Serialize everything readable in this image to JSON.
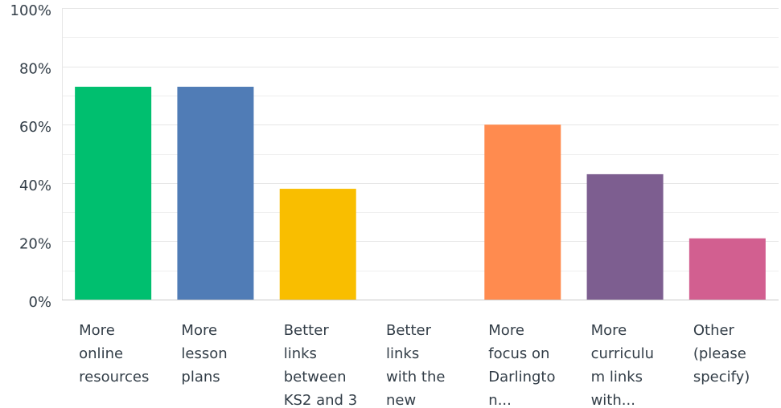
{
  "chart_data": {
    "type": "bar",
    "title": "",
    "xlabel": "",
    "ylabel": "",
    "ylim": [
      0,
      100
    ],
    "grid": true,
    "legend": "none",
    "y_ticks": [
      "0%",
      "20%",
      "40%",
      "60%",
      "80%",
      "100%"
    ],
    "categories": [
      "More online resources",
      "More lesson plans",
      "Better links between KS2 and 3",
      "Better links with the new",
      "More focus on Darlington...",
      "More curriculum links with...",
      "Other (please specify)"
    ],
    "category_label_lines": [
      [
        "More",
        "online",
        "resources"
      ],
      [
        "More",
        "lesson",
        "plans"
      ],
      [
        "Better",
        "links",
        "between",
        "KS2 and 3"
      ],
      [
        "Better",
        "links",
        "with the",
        "new"
      ],
      [
        "More",
        "focus on",
        "Darlingto",
        "n..."
      ],
      [
        "More",
        "curriculu",
        "m links",
        "with..."
      ],
      [
        "Other",
        "(please",
        "specify)"
      ]
    ],
    "values": [
      73,
      73,
      38,
      0,
      60,
      43,
      21
    ],
    "colors": [
      "#00bf6f",
      "#507cb6",
      "#f9be00",
      "#6bc8cd",
      "#ff8b4f",
      "#7d5e90",
      "#d25f90"
    ]
  }
}
